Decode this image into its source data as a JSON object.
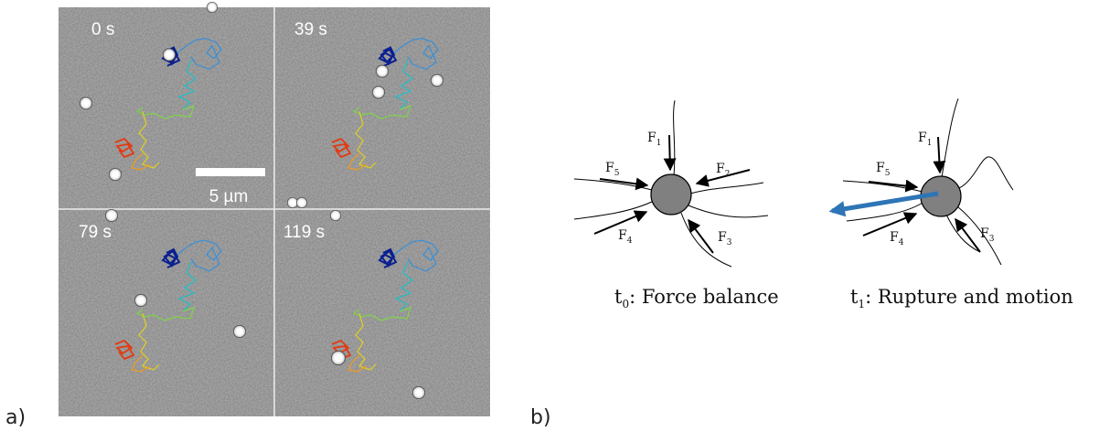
{
  "panel_a": {
    "label": "a)",
    "frames": [
      "0 s",
      "39 s",
      "79 s",
      "119 s"
    ],
    "scale_bar": "5 µm"
  },
  "panel_b": {
    "label": "b)",
    "left": {
      "forces": [
        {
          "letter": "F",
          "index": "1"
        },
        {
          "letter": "F",
          "index": "2"
        },
        {
          "letter": "F",
          "index": "3"
        },
        {
          "letter": "F",
          "index": "4"
        },
        {
          "letter": "F",
          "index": "5"
        }
      ],
      "caption": {
        "symbol": "t",
        "index": "0",
        "text": ": Force balance"
      }
    },
    "right": {
      "forces": [
        {
          "letter": "F",
          "index": "1"
        },
        {
          "letter": "F",
          "index": "3"
        },
        {
          "letter": "F",
          "index": "4"
        },
        {
          "letter": "F",
          "index": "5"
        }
      ],
      "caption": {
        "symbol": "t",
        "index": "1",
        "text": ": Rupture and motion"
      }
    }
  }
}
